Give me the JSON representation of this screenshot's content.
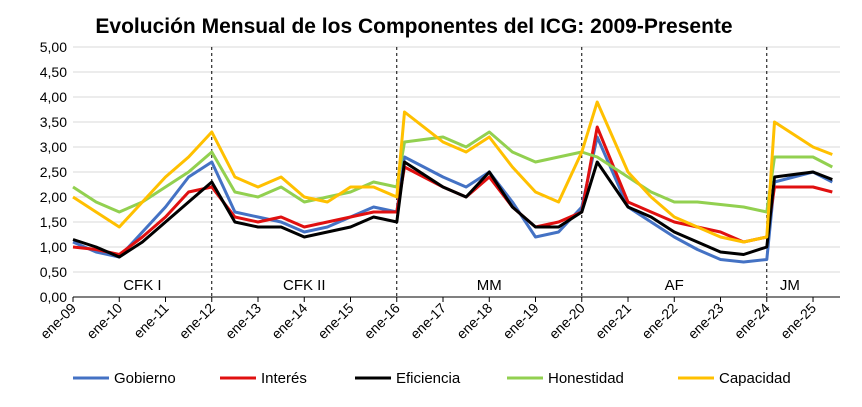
{
  "chart_data": {
    "type": "line",
    "title": "Evolución Mensual de los Componentes del ICG: 2009-Presente",
    "xlabel": "",
    "ylabel": "",
    "ylim": [
      0,
      5
    ],
    "yticks": [
      "0,00",
      "0,50",
      "1,00",
      "1,50",
      "2,00",
      "2,50",
      "3,00",
      "3,50",
      "4,00",
      "4,50",
      "5,00"
    ],
    "xticks": [
      "ene-09",
      "ene-10",
      "ene-11",
      "ene-12",
      "ene-13",
      "ene-14",
      "ene-15",
      "ene-16",
      "ene-17",
      "ene-18",
      "ene-19",
      "ene-20",
      "ene-21",
      "ene-22",
      "ene-23",
      "ene-24",
      "ene-25"
    ],
    "x_start": "ene-09",
    "grid": "horizontal",
    "legend_position": "bottom",
    "periods": [
      {
        "label": "CFK I",
        "start": "ene-09",
        "end": "ene-12"
      },
      {
        "label": "CFK II",
        "start": "ene-12",
        "end": "ene-16"
      },
      {
        "label": "MM",
        "start": "ene-16",
        "end": "ene-20"
      },
      {
        "label": "AF",
        "start": "ene-20",
        "end": "ene-24"
      },
      {
        "label": "JM",
        "start": "ene-24",
        "end": "ene-25"
      }
    ],
    "period_dividers": [
      "ene-12",
      "ene-16",
      "ene-20",
      "ene-24"
    ],
    "series": [
      {
        "name": "Gobierno",
        "color": "#4472C4",
        "points": [
          [
            "ene-09",
            1.1
          ],
          [
            "jul-09",
            0.9
          ],
          [
            "ene-10",
            0.8
          ],
          [
            "jul-10",
            1.3
          ],
          [
            "ene-11",
            1.8
          ],
          [
            "jul-11",
            2.4
          ],
          [
            "ene-12",
            2.7
          ],
          [
            "jul-12",
            1.7
          ],
          [
            "ene-13",
            1.6
          ],
          [
            "jul-13",
            1.5
          ],
          [
            "ene-14",
            1.3
          ],
          [
            "jul-14",
            1.4
          ],
          [
            "ene-15",
            1.6
          ],
          [
            "jul-15",
            1.8
          ],
          [
            "ene-16",
            1.7
          ],
          [
            "mar-16",
            2.8
          ],
          [
            "ene-17",
            2.4
          ],
          [
            "jul-17",
            2.2
          ],
          [
            "ene-18",
            2.5
          ],
          [
            "jul-18",
            1.9
          ],
          [
            "ene-19",
            1.2
          ],
          [
            "jul-19",
            1.3
          ],
          [
            "ene-20",
            1.8
          ],
          [
            "may-20",
            3.2
          ],
          [
            "ene-21",
            1.8
          ],
          [
            "jul-21",
            1.5
          ],
          [
            "ene-22",
            1.2
          ],
          [
            "jul-22",
            0.95
          ],
          [
            "ene-23",
            0.75
          ],
          [
            "jul-23",
            0.7
          ],
          [
            "ene-24",
            0.75
          ],
          [
            "mar-24",
            2.3
          ],
          [
            "ene-25",
            2.5
          ],
          [
            "jun-25",
            2.3
          ]
        ]
      },
      {
        "name": "Interés",
        "color": "#E01010",
        "points": [
          [
            "ene-09",
            1.0
          ],
          [
            "jul-09",
            0.95
          ],
          [
            "ene-10",
            0.85
          ],
          [
            "jul-10",
            1.2
          ],
          [
            "ene-11",
            1.6
          ],
          [
            "jul-11",
            2.1
          ],
          [
            "ene-12",
            2.2
          ],
          [
            "jul-12",
            1.6
          ],
          [
            "ene-13",
            1.5
          ],
          [
            "jul-13",
            1.6
          ],
          [
            "ene-14",
            1.4
          ],
          [
            "jul-14",
            1.5
          ],
          [
            "ene-15",
            1.6
          ],
          [
            "jul-15",
            1.7
          ],
          [
            "ene-16",
            1.7
          ],
          [
            "mar-16",
            2.6
          ],
          [
            "ene-17",
            2.2
          ],
          [
            "jul-17",
            2.0
          ],
          [
            "ene-18",
            2.4
          ],
          [
            "jul-18",
            1.8
          ],
          [
            "ene-19",
            1.4
          ],
          [
            "jul-19",
            1.5
          ],
          [
            "ene-20",
            1.7
          ],
          [
            "may-20",
            3.4
          ],
          [
            "ene-21",
            1.9
          ],
          [
            "jul-21",
            1.7
          ],
          [
            "ene-22",
            1.5
          ],
          [
            "jul-22",
            1.4
          ],
          [
            "ene-23",
            1.3
          ],
          [
            "jul-23",
            1.1
          ],
          [
            "ene-24",
            1.2
          ],
          [
            "mar-24",
            2.2
          ],
          [
            "ene-25",
            2.2
          ],
          [
            "jun-25",
            2.1
          ]
        ]
      },
      {
        "name": "Eficiencia",
        "color": "#000000",
        "points": [
          [
            "ene-09",
            1.15
          ],
          [
            "jul-09",
            1.0
          ],
          [
            "ene-10",
            0.8
          ],
          [
            "jul-10",
            1.1
          ],
          [
            "ene-11",
            1.5
          ],
          [
            "jul-11",
            1.9
          ],
          [
            "ene-12",
            2.3
          ],
          [
            "jul-12",
            1.5
          ],
          [
            "ene-13",
            1.4
          ],
          [
            "jul-13",
            1.4
          ],
          [
            "ene-14",
            1.2
          ],
          [
            "jul-14",
            1.3
          ],
          [
            "ene-15",
            1.4
          ],
          [
            "jul-15",
            1.6
          ],
          [
            "ene-16",
            1.5
          ],
          [
            "mar-16",
            2.7
          ],
          [
            "ene-17",
            2.2
          ],
          [
            "jul-17",
            2.0
          ],
          [
            "ene-18",
            2.5
          ],
          [
            "jul-18",
            1.8
          ],
          [
            "ene-19",
            1.4
          ],
          [
            "jul-19",
            1.4
          ],
          [
            "ene-20",
            1.7
          ],
          [
            "may-20",
            2.7
          ],
          [
            "ene-21",
            1.8
          ],
          [
            "jul-21",
            1.6
          ],
          [
            "ene-22",
            1.3
          ],
          [
            "jul-22",
            1.1
          ],
          [
            "ene-23",
            0.9
          ],
          [
            "jul-23",
            0.85
          ],
          [
            "ene-24",
            1.0
          ],
          [
            "mar-24",
            2.4
          ],
          [
            "ene-25",
            2.5
          ],
          [
            "jun-25",
            2.35
          ]
        ]
      },
      {
        "name": "Honestidad",
        "color": "#92D050",
        "points": [
          [
            "ene-09",
            2.2
          ],
          [
            "jul-09",
            1.9
          ],
          [
            "ene-10",
            1.7
          ],
          [
            "jul-10",
            1.9
          ],
          [
            "ene-11",
            2.2
          ],
          [
            "jul-11",
            2.5
          ],
          [
            "ene-12",
            2.9
          ],
          [
            "jul-12",
            2.1
          ],
          [
            "ene-13",
            2.0
          ],
          [
            "jul-13",
            2.2
          ],
          [
            "ene-14",
            1.9
          ],
          [
            "jul-14",
            2.0
          ],
          [
            "ene-15",
            2.1
          ],
          [
            "jul-15",
            2.3
          ],
          [
            "ene-16",
            2.2
          ],
          [
            "mar-16",
            3.1
          ],
          [
            "ene-17",
            3.2
          ],
          [
            "jul-17",
            3.0
          ],
          [
            "ene-18",
            3.3
          ],
          [
            "jul-18",
            2.9
          ],
          [
            "ene-19",
            2.7
          ],
          [
            "jul-19",
            2.8
          ],
          [
            "ene-20",
            2.9
          ],
          [
            "may-20",
            2.8
          ],
          [
            "ene-21",
            2.4
          ],
          [
            "jul-21",
            2.1
          ],
          [
            "ene-22",
            1.9
          ],
          [
            "jul-22",
            1.9
          ],
          [
            "ene-23",
            1.85
          ],
          [
            "jul-23",
            1.8
          ],
          [
            "ene-24",
            1.7
          ],
          [
            "mar-24",
            2.8
          ],
          [
            "ene-25",
            2.8
          ],
          [
            "jun-25",
            2.6
          ]
        ]
      },
      {
        "name": "Capacidad",
        "color": "#FFC000",
        "points": [
          [
            "ene-09",
            2.0
          ],
          [
            "jul-09",
            1.7
          ],
          [
            "ene-10",
            1.4
          ],
          [
            "jul-10",
            1.9
          ],
          [
            "ene-11",
            2.4
          ],
          [
            "jul-11",
            2.8
          ],
          [
            "ene-12",
            3.3
          ],
          [
            "jul-12",
            2.4
          ],
          [
            "ene-13",
            2.2
          ],
          [
            "jul-13",
            2.4
          ],
          [
            "ene-14",
            2.0
          ],
          [
            "jul-14",
            1.9
          ],
          [
            "ene-15",
            2.2
          ],
          [
            "jul-15",
            2.2
          ],
          [
            "ene-16",
            2.0
          ],
          [
            "mar-16",
            3.7
          ],
          [
            "ene-17",
            3.1
          ],
          [
            "jul-17",
            2.9
          ],
          [
            "ene-18",
            3.2
          ],
          [
            "jul-18",
            2.6
          ],
          [
            "ene-19",
            2.1
          ],
          [
            "jul-19",
            1.9
          ],
          [
            "ene-20",
            2.9
          ],
          [
            "may-20",
            3.9
          ],
          [
            "ene-21",
            2.5
          ],
          [
            "jul-21",
            2.0
          ],
          [
            "ene-22",
            1.6
          ],
          [
            "jul-22",
            1.4
          ],
          [
            "ene-23",
            1.2
          ],
          [
            "jul-23",
            1.1
          ],
          [
            "ene-24",
            1.2
          ],
          [
            "mar-24",
            3.5
          ],
          [
            "ene-25",
            3.0
          ],
          [
            "jun-25",
            2.85
          ]
        ]
      }
    ]
  }
}
